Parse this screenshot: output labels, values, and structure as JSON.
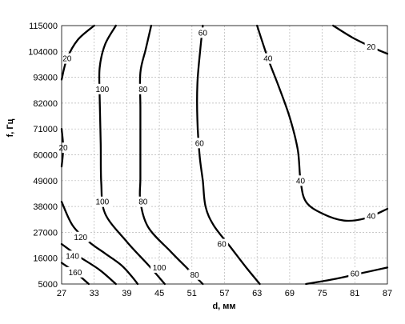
{
  "chart_data": {
    "type": "contour",
    "title": "",
    "xlabel": "d, мм",
    "ylabel": "f, Гц",
    "xlim": [
      27,
      87
    ],
    "ylim": [
      5000,
      115000
    ],
    "grid": true,
    "xticks": [
      27,
      33,
      39,
      45,
      51,
      57,
      63,
      69,
      75,
      81,
      87
    ],
    "yticks": [
      5000,
      16000,
      27000,
      38000,
      49000,
      60000,
      71000,
      82000,
      93000,
      104000,
      115000
    ],
    "line_color": "#000000",
    "grid_color": "#b5b5b5",
    "contours": [
      {
        "level": 20,
        "segments": [
          [
            [
              27,
              92000
            ],
            [
              28,
              101000
            ],
            [
              30,
              109000
            ],
            [
              33,
              115000
            ]
          ],
          [
            [
              27,
              55000
            ],
            [
              27.3,
              63000
            ],
            [
              27,
              71000
            ]
          ],
          [
            [
              77,
              115000
            ],
            [
              80.5,
              110000
            ],
            [
              84,
              106000
            ],
            [
              87,
              103000
            ]
          ]
        ]
      },
      {
        "level": 40,
        "segments": [
          [
            [
              63,
              115000
            ],
            [
              65,
              101000
            ],
            [
              67,
              89000
            ],
            [
              69,
              76000
            ],
            [
              70.5,
              62000
            ],
            [
              71,
              49000
            ],
            [
              72,
              40000
            ],
            [
              75,
              35000
            ],
            [
              79,
              32000
            ],
            [
              83,
              33000
            ],
            [
              87,
              37000
            ]
          ]
        ]
      },
      {
        "level": 60,
        "segments": [
          [
            [
              53,
              115000
            ],
            [
              52.5,
              104000
            ],
            [
              52,
              90000
            ],
            [
              52,
              75000
            ],
            [
              52.4,
              60000
            ],
            [
              53,
              49000
            ],
            [
              53.5,
              38000
            ],
            [
              55,
              30000
            ],
            [
              58,
              21000
            ],
            [
              61,
              12000
            ],
            [
              63.5,
              5000
            ]
          ],
          [
            [
              72,
              5000
            ],
            [
              77,
              7000
            ],
            [
              82,
              9500
            ],
            [
              87,
              12000
            ]
          ]
        ]
      },
      {
        "level": 80,
        "segments": [
          [
            [
              43.5,
              115000
            ],
            [
              42.5,
              105000
            ],
            [
              41.5,
              95000
            ],
            [
              41.5,
              80000
            ],
            [
              41.5,
              65000
            ],
            [
              41.5,
              50000
            ],
            [
              41.5,
              40000
            ],
            [
              43,
              29000
            ],
            [
              47,
              19000
            ],
            [
              50,
              12000
            ],
            [
              53,
              5000
            ]
          ]
        ]
      },
      {
        "level": 100,
        "segments": [
          [
            [
              37,
              115000
            ],
            [
              35,
              107000
            ],
            [
              34,
              97000
            ],
            [
              34,
              85000
            ],
            [
              34.2,
              65000
            ],
            [
              34.3,
              48000
            ],
            [
              35,
              35000
            ],
            [
              39,
              23000
            ],
            [
              43,
              13000
            ],
            [
              46,
              5000
            ]
          ]
        ]
      },
      {
        "level": 120,
        "segments": [
          [
            [
              27,
              40000
            ],
            [
              29,
              30000
            ],
            [
              32,
              23000
            ],
            [
              35,
              18000
            ],
            [
              38,
              13000
            ],
            [
              40,
              8000
            ],
            [
              41,
              5000
            ]
          ]
        ]
      },
      {
        "level": 140,
        "segments": [
          [
            [
              27,
              22000
            ],
            [
              30,
              17000
            ],
            [
              34,
              11000
            ],
            [
              37,
              5000
            ]
          ]
        ]
      },
      {
        "level": 160,
        "segments": [
          [
            [
              27,
              14000
            ],
            [
              29.5,
              10000
            ],
            [
              32,
              5000
            ]
          ]
        ]
      }
    ],
    "contour_labels": [
      {
        "text": "20",
        "x": 28,
        "y": 101000
      },
      {
        "text": "20",
        "x": 27.3,
        "y": 63000
      },
      {
        "text": "20",
        "x": 84,
        "y": 106000
      },
      {
        "text": "40",
        "x": 65,
        "y": 101000
      },
      {
        "text": "40",
        "x": 71,
        "y": 49000
      },
      {
        "text": "40",
        "x": 84,
        "y": 34000
      },
      {
        "text": "60",
        "x": 53,
        "y": 112000
      },
      {
        "text": "60",
        "x": 52.4,
        "y": 65000
      },
      {
        "text": "60",
        "x": 56.5,
        "y": 22000
      },
      {
        "text": "60",
        "x": 81,
        "y": 9500
      },
      {
        "text": "80",
        "x": 42,
        "y": 88000
      },
      {
        "text": "80",
        "x": 42,
        "y": 40000
      },
      {
        "text": "80",
        "x": 51.5,
        "y": 9000
      },
      {
        "text": "100",
        "x": 34.5,
        "y": 88000
      },
      {
        "text": "100",
        "x": 34.5,
        "y": 40000
      },
      {
        "text": "100",
        "x": 45,
        "y": 12000
      },
      {
        "text": "120",
        "x": 30.5,
        "y": 25000
      },
      {
        "text": "140",
        "x": 29,
        "y": 17000
      },
      {
        "text": "160",
        "x": 29.5,
        "y": 10000
      }
    ]
  }
}
